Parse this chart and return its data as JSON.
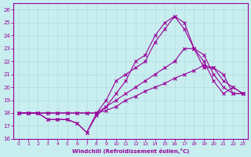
{
  "xlabel": "Windchill (Refroidissement éolien,°C)",
  "background_color": "#c8eef0",
  "line_color": "#990099",
  "grid_color": "#b0d8d8",
  "xlim": [
    -0.5,
    23.5
  ],
  "ylim": [
    16,
    26.5
  ],
  "xticks": [
    0,
    1,
    2,
    3,
    4,
    5,
    6,
    7,
    8,
    9,
    10,
    11,
    12,
    13,
    14,
    15,
    16,
    17,
    18,
    19,
    20,
    21,
    22,
    23
  ],
  "yticks": [
    16,
    17,
    18,
    19,
    20,
    21,
    22,
    23,
    24,
    25,
    26
  ],
  "lines": [
    [
      18,
      18,
      18,
      17.5,
      17.5,
      17.5,
      17.2,
      16.5,
      18,
      19.0,
      20.5,
      21.0,
      21.5,
      22.0,
      23.5,
      24.5,
      25.5,
      25.0,
      23.0,
      21.5,
      21.5,
      20.5,
      20.0,
      19.5
    ],
    [
      18,
      18,
      18,
      17.5,
      17.5,
      17.5,
      17.2,
      16.5,
      17.8,
      18.5,
      19.5,
      20.5,
      22.0,
      22.5,
      24.0,
      25.0,
      25.5,
      24.5,
      23.0,
      22.0,
      20.5,
      19.5,
      20.0,
      19.5
    ],
    [
      18,
      18,
      18,
      18.0,
      18.0,
      18.0,
      18.0,
      18.0,
      18.0,
      18.5,
      19.0,
      19.5,
      20.0,
      20.5,
      21.0,
      21.5,
      22.0,
      23.0,
      23.0,
      22.5,
      21.0,
      20.0,
      19.5,
      19.5
    ],
    [
      18,
      18,
      18,
      18.0,
      18.0,
      18.0,
      18.0,
      18.0,
      18.0,
      18.2,
      18.5,
      19.0,
      19.3,
      19.7,
      20.0,
      20.3,
      20.7,
      21.0,
      21.3,
      21.7,
      21.5,
      21.0,
      19.5,
      19.5
    ]
  ]
}
